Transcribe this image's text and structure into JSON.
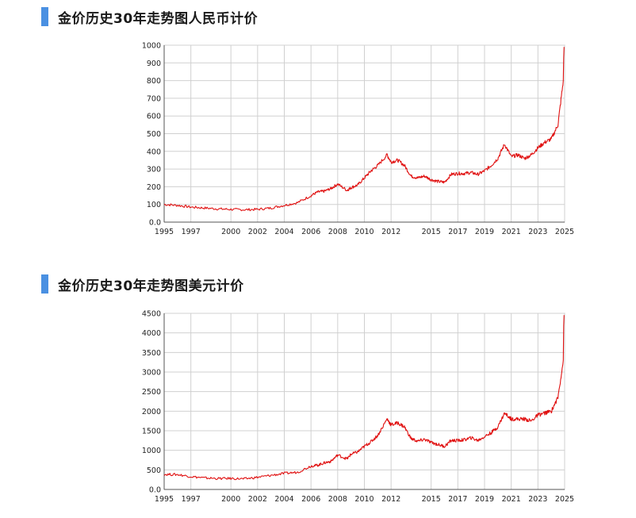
{
  "sections": [
    {
      "title": "金价历史30年走势图人民币计价"
    },
    {
      "title": "金价历史30年走势图美元计价"
    }
  ],
  "colors": {
    "accent": "#4a90e2",
    "line": "#e01010",
    "grid": "#d0d0d0"
  },
  "chart_data": [
    {
      "type": "line",
      "title": "金价历史30年走势图人民币计价",
      "xlabel": "",
      "ylabel": "",
      "xlim": [
        1995,
        2025
      ],
      "ylim": [
        0,
        1000
      ],
      "x_ticks": [
        "1995",
        "1997",
        "2000",
        "2002",
        "2004",
        "2006",
        "2008",
        "2010",
        "2012",
        "2015",
        "2017",
        "2019",
        "2021",
        "2023",
        "2025"
      ],
      "y_ticks": [
        "1000",
        "900",
        "800",
        "700",
        "600",
        "500",
        "400",
        "300",
        "200",
        "100",
        "0.0"
      ],
      "grid": true,
      "series": [
        {
          "x": [
            1995.0,
            1996.0,
            1997.0,
            1998.0,
            1999.0,
            2000.0,
            2001.0,
            2002.0,
            2003.0,
            2004.0,
            2005.0,
            2006.0,
            2006.5,
            2007.0,
            2007.5,
            2008.0,
            2008.7,
            2009.0,
            2009.5,
            2010.0,
            2010.5,
            2011.0,
            2011.7,
            2012.0,
            2012.5,
            2013.0,
            2013.5,
            2014.0,
            2014.5,
            2015.0,
            2015.5,
            2016.0,
            2016.5,
            2017.0,
            2017.5,
            2018.0,
            2018.5,
            2019.0,
            2019.5,
            2020.0,
            2020.5,
            2021.0,
            2021.5,
            2022.0,
            2022.5,
            2023.0,
            2023.5,
            2024.0,
            2024.5,
            2024.9
          ],
          "y": [
            100,
            95,
            85,
            80,
            75,
            72,
            70,
            72,
            80,
            95,
            110,
            150,
            170,
            175,
            190,
            215,
            180,
            195,
            210,
            250,
            290,
            320,
            380,
            340,
            350,
            320,
            260,
            250,
            260,
            240,
            230,
            225,
            270,
            275,
            275,
            280,
            270,
            290,
            320,
            360,
            440,
            370,
            380,
            360,
            380,
            420,
            450,
            470,
            550,
            800
          ]
        }
      ]
    },
    {
      "type": "line",
      "title": "金价历史30年走势图美元计价",
      "xlabel": "",
      "ylabel": "",
      "xlim": [
        1995,
        2025
      ],
      "ylim": [
        0,
        4500
      ],
      "x_ticks": [
        "1995",
        "1997",
        "2000",
        "2002",
        "2004",
        "2006",
        "2008",
        "2010",
        "2012",
        "2015",
        "2017",
        "2019",
        "2021",
        "2023",
        "2025"
      ],
      "y_ticks": [
        "4500",
        "4000",
        "3500",
        "3000",
        "2500",
        "2000",
        "1500",
        "1000",
        "500",
        "0.0"
      ],
      "grid": true,
      "series": [
        {
          "x": [
            1995.0,
            1996.0,
            1997.0,
            1998.0,
            1999.0,
            2000.0,
            2001.0,
            2002.0,
            2003.0,
            2004.0,
            2005.0,
            2006.0,
            2006.5,
            2007.0,
            2007.5,
            2008.0,
            2008.7,
            2009.0,
            2009.5,
            2010.0,
            2010.5,
            2011.0,
            2011.7,
            2012.0,
            2012.5,
            2013.0,
            2013.5,
            2014.0,
            2014.5,
            2015.0,
            2015.5,
            2016.0,
            2016.5,
            2017.0,
            2017.5,
            2018.0,
            2018.5,
            2019.0,
            2019.5,
            2020.0,
            2020.5,
            2021.0,
            2021.5,
            2022.0,
            2022.5,
            2023.0,
            2023.5,
            2024.0,
            2024.5,
            2024.9
          ],
          "y": [
            385,
            380,
            330,
            295,
            280,
            280,
            270,
            310,
            360,
            410,
            440,
            600,
            620,
            680,
            720,
            880,
            780,
            900,
            960,
            1100,
            1220,
            1380,
            1800,
            1650,
            1700,
            1600,
            1300,
            1230,
            1280,
            1200,
            1150,
            1100,
            1250,
            1250,
            1270,
            1320,
            1250,
            1350,
            1450,
            1600,
            1950,
            1800,
            1800,
            1800,
            1750,
            1900,
            1950,
            2000,
            2350,
            3300
          ]
        }
      ]
    }
  ]
}
